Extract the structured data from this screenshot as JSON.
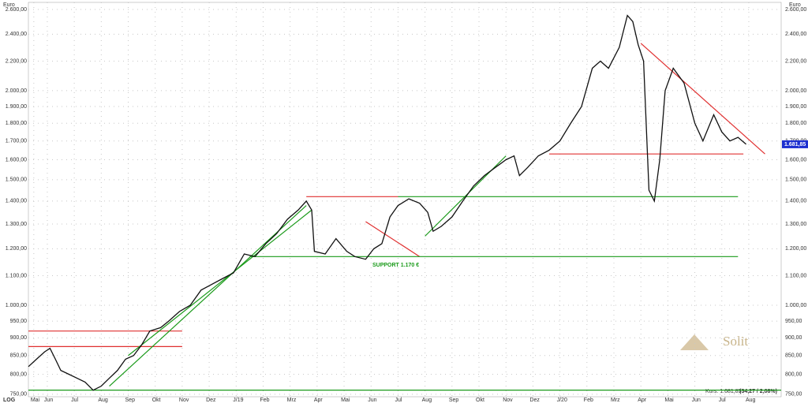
{
  "chart_data": {
    "type": "line",
    "y_unit": "Euro",
    "scale_label": "LOG",
    "log_scale": true,
    "grid": true,
    "color": "#111111",
    "x": [
      0.3,
      0.6,
      0.9,
      1.1,
      1.3,
      1.5,
      1.8,
      2.1,
      2.4,
      2.7,
      3.0,
      3.3,
      3.6,
      3.9,
      4.2,
      4.5,
      4.8,
      5.2,
      5.5,
      5.9,
      6.3,
      6.7,
      7.1,
      7.5,
      7.9,
      8.3,
      8.7,
      9.1,
      9.5,
      9.9,
      10.3,
      10.6,
      10.8,
      10.9,
      11.3,
      11.7,
      12.1,
      12.4,
      12.8,
      13.1,
      13.4,
      13.7,
      14.0,
      14.4,
      14.8,
      15.1,
      15.3,
      15.6,
      16.0,
      16.4,
      16.8,
      17.2,
      17.6,
      18.0,
      18.3,
      18.5,
      18.8,
      19.2,
      19.6,
      20.0,
      20.4,
      20.8,
      21.2,
      21.5,
      21.8,
      22.2,
      22.5,
      22.7,
      22.9,
      23.1,
      23.3,
      23.5,
      23.7,
      23.9,
      24.2,
      24.6,
      25.0,
      25.3,
      25.7,
      26.0,
      26.3,
      26.6,
      26.9
    ],
    "values": [
      820,
      840,
      860,
      870,
      840,
      810,
      800,
      790,
      780,
      760,
      770,
      790,
      810,
      840,
      850,
      880,
      920,
      930,
      950,
      980,
      1000,
      1050,
      1070,
      1090,
      1110,
      1180,
      1170,
      1220,
      1260,
      1320,
      1360,
      1400,
      1360,
      1190,
      1180,
      1240,
      1190,
      1170,
      1160,
      1200,
      1220,
      1330,
      1380,
      1410,
      1390,
      1350,
      1270,
      1290,
      1330,
      1400,
      1470,
      1520,
      1560,
      1600,
      1620,
      1520,
      1560,
      1620,
      1650,
      1700,
      1800,
      1900,
      2150,
      2200,
      2150,
      2300,
      2550,
      2500,
      2320,
      2200,
      1450,
      1400,
      1600,
      2000,
      2150,
      2050,
      1800,
      1700,
      1850,
      1750,
      1700,
      1720,
      1681.85
    ],
    "last_price": {
      "value": 1681.85,
      "label": "1.681,85"
    },
    "quote": {
      "label": "Kurs: 1.681,85",
      "change": "(34,27 / 2,08%)"
    },
    "support_label": "SUPPORT 1.170 €",
    "logo": "Solit",
    "xlim": [
      0.3,
      28.2
    ],
    "xticks": [
      {
        "value": 0.5,
        "label": "Mai"
      },
      {
        "value": 1,
        "label": "Jun"
      },
      {
        "value": 2,
        "label": "Jul"
      },
      {
        "value": 3,
        "label": "Aug"
      },
      {
        "value": 4,
        "label": "Sep"
      },
      {
        "value": 5,
        "label": "Okt"
      },
      {
        "value": 6,
        "label": "Nov"
      },
      {
        "value": 7,
        "label": "Dez"
      },
      {
        "value": 8,
        "label": "J/19"
      },
      {
        "value": 9,
        "label": "Feb"
      },
      {
        "value": 10,
        "label": "Mrz"
      },
      {
        "value": 11,
        "label": "Apr"
      },
      {
        "value": 12,
        "label": "Mai"
      },
      {
        "value": 13,
        "label": "Jun"
      },
      {
        "value": 14,
        "label": "Jul"
      },
      {
        "value": 15,
        "label": "Aug"
      },
      {
        "value": 16,
        "label": "Sep"
      },
      {
        "value": 17,
        "label": "Okt"
      },
      {
        "value": 18,
        "label": "Nov"
      },
      {
        "value": 19,
        "label": "Dez"
      },
      {
        "value": 20,
        "label": "J/20"
      },
      {
        "value": 21,
        "label": "Feb"
      },
      {
        "value": 22,
        "label": "Mrz"
      },
      {
        "value": 23,
        "label": "Apr"
      },
      {
        "value": 24,
        "label": "Mai"
      },
      {
        "value": 25,
        "label": "Jun"
      },
      {
        "value": 26,
        "label": "Jul"
      },
      {
        "value": 27,
        "label": "Aug"
      }
    ],
    "ylim": [
      744,
      2660
    ],
    "yticks": [
      {
        "value": 750,
        "label": "750,00"
      },
      {
        "value": 800,
        "label": "800,00"
      },
      {
        "value": 850,
        "label": "850,00"
      },
      {
        "value": 900,
        "label": "900,00"
      },
      {
        "value": 950,
        "label": "950,00"
      },
      {
        "value": 1000,
        "label": "1.000,00"
      },
      {
        "value": 1100,
        "label": "1.100,00"
      },
      {
        "value": 1200,
        "label": "1.200,00"
      },
      {
        "value": 1300,
        "label": "1.300,00"
      },
      {
        "value": 1400,
        "label": "1.400,00"
      },
      {
        "value": 1500,
        "label": "1.500,00"
      },
      {
        "value": 1600,
        "label": "1.600,00"
      },
      {
        "value": 1700,
        "label": "1.700,00"
      },
      {
        "value": 1800,
        "label": "1.800,00"
      },
      {
        "value": 1900,
        "label": "1.900,00"
      },
      {
        "value": 2000,
        "label": "2.000,00"
      },
      {
        "value": 2200,
        "label": "2.200,00"
      },
      {
        "value": 2400,
        "label": "2.400,00"
      },
      {
        "value": 2600,
        "label": "2.600,00"
      }
    ],
    "trendlines": [
      {
        "color": "#1a9a1a",
        "x": [
          0.3,
          28.2
        ],
        "y": [
          760,
          760
        ]
      },
      {
        "color": "#e03030",
        "x": [
          0.3,
          6.0
        ],
        "y": [
          920,
          920
        ]
      },
      {
        "color": "#e03030",
        "x": [
          0.3,
          6.0
        ],
        "y": [
          875,
          875
        ]
      },
      {
        "color": "#e03030",
        "x": [
          10.6,
          14.0
        ],
        "y": [
          1420,
          1420
        ]
      },
      {
        "color": "#e03030",
        "x": [
          12.8,
          14.8
        ],
        "y": [
          1310,
          1170
        ]
      },
      {
        "color": "#1a9a1a",
        "x": [
          8.5,
          26.6
        ],
        "y": [
          1170,
          1170
        ]
      },
      {
        "color": "#1a9a1a",
        "x": [
          14.0,
          26.6
        ],
        "y": [
          1420,
          1420
        ]
      },
      {
        "color": "#e03030",
        "x": [
          19.6,
          26.8
        ],
        "y": [
          1630,
          1630
        ]
      },
      {
        "color": "#e03030",
        "x": [
          23.0,
          27.6
        ],
        "y": [
          2330,
          1630
        ]
      },
      {
        "color": "#1a9a1a",
        "x": [
          3.3,
          10.6
        ],
        "y": [
          770,
          1380
        ]
      },
      {
        "color": "#1a9a1a",
        "x": [
          4.0,
          10.8
        ],
        "y": [
          850,
          1360
        ]
      },
      {
        "color": "#1a9a1a",
        "x": [
          15.0,
          18.0
        ],
        "y": [
          1250,
          1620
        ]
      }
    ]
  }
}
